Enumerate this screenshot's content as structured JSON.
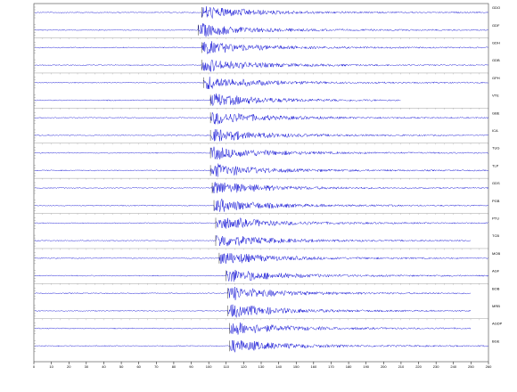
{
  "chart_data": {
    "type": "seismogram",
    "color": "#1a1ad6",
    "xlim": [
      0,
      260
    ],
    "xticks": [
      0,
      10,
      20,
      30,
      40,
      50,
      60,
      70,
      80,
      90,
      100,
      110,
      120,
      130,
      140,
      150,
      160,
      170,
      180,
      190,
      200,
      210,
      220,
      230,
      240,
      250,
      260
    ],
    "traces": [
      {
        "label": "GDO",
        "onset": 96,
        "end": 260
      },
      {
        "label": "GDF",
        "onset": 94,
        "end": 260
      },
      {
        "label": "GDH",
        "onset": 96,
        "end": 260
      },
      {
        "label": "GDB",
        "onset": 96,
        "end": 260
      },
      {
        "label": "GPH",
        "onset": 97,
        "end": 260
      },
      {
        "label": "VTE",
        "onset": 101,
        "end": 210
      },
      {
        "label": "GBE",
        "onset": 101,
        "end": 260
      },
      {
        "label": "ICA",
        "onset": 101,
        "end": 260
      },
      {
        "label": "TUG",
        "onset": 101,
        "end": 260
      },
      {
        "label": "TLP",
        "onset": 101,
        "end": 260
      },
      {
        "label": "GDS",
        "onset": 102,
        "end": 260
      },
      {
        "label": "PGB",
        "onset": 103,
        "end": 260
      },
      {
        "label": "PTU",
        "onset": 104,
        "end": 260
      },
      {
        "label": "TCB",
        "onset": 104,
        "end": 250
      },
      {
        "label": "MOB",
        "onset": 106,
        "end": 260
      },
      {
        "label": "AGF",
        "onset": 110,
        "end": 260
      },
      {
        "label": "BOB",
        "onset": 111,
        "end": 250
      },
      {
        "label": "MRB",
        "onset": 111,
        "end": 250
      },
      {
        "label": "AGDP",
        "onset": 112,
        "end": 250
      },
      {
        "label": "BGE",
        "onset": 112,
        "end": 260
      }
    ]
  }
}
